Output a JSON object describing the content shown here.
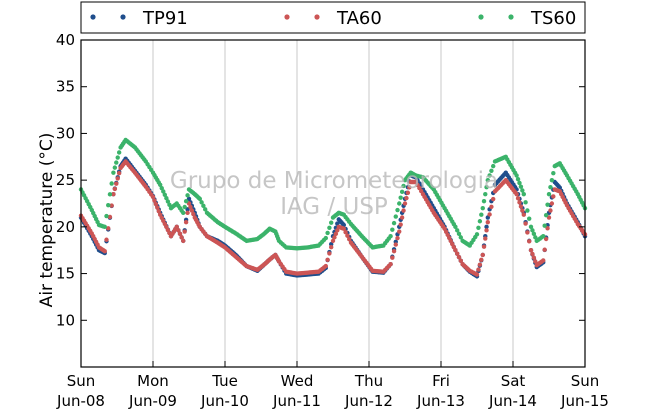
{
  "chart_data": {
    "type": "scatter",
    "ylabel": "Air temperature (°C)",
    "ylim": [
      5,
      40
    ],
    "yticks": [
      10,
      15,
      20,
      25,
      30,
      35,
      40
    ],
    "xlim": [
      0,
      7
    ],
    "xticks": [
      {
        "day": "Sun",
        "date": "Jun-08",
        "x": 0
      },
      {
        "day": "Mon",
        "date": "Jun-09",
        "x": 1
      },
      {
        "day": "Tue",
        "date": "Jun-10",
        "x": 2
      },
      {
        "day": "Wed",
        "date": "Jun-11",
        "x": 3
      },
      {
        "day": "Thu",
        "date": "Jun-12",
        "x": 4
      },
      {
        "day": "Fri",
        "date": "Jun-13",
        "x": 5
      },
      {
        "day": "Sat",
        "date": "Jun-14",
        "x": 6
      },
      {
        "day": "Sun",
        "date": "Jun-15",
        "x": 7
      }
    ],
    "grid": "vertical",
    "legend_position": "top",
    "watermark": [
      "Grupo de Micrometeorologia",
      "IAG / USP"
    ],
    "series": [
      {
        "name": "TP91",
        "color": "#1f4e8c",
        "x": [
          0,
          0.15,
          0.25,
          0.33,
          0.45,
          0.55,
          0.62,
          0.75,
          0.9,
          1.0,
          1.1,
          1.25,
          1.33,
          1.42,
          1.5,
          1.58,
          1.65,
          1.75,
          1.9,
          2.0,
          2.15,
          2.3,
          2.45,
          2.55,
          2.62,
          2.7,
          2.75,
          2.85,
          3.0,
          3.15,
          3.3,
          3.4,
          3.5,
          3.58,
          3.65,
          3.75,
          3.9,
          4.05,
          4.2,
          4.3,
          4.42,
          4.5,
          4.58,
          4.65,
          4.75,
          4.9,
          5.05,
          5.2,
          5.3,
          5.4,
          5.5,
          5.58,
          5.65,
          5.75,
          5.9,
          6.05,
          6.15,
          6.25,
          6.33,
          6.42,
          6.5,
          6.58,
          6.65,
          6.75,
          6.9,
          7.0
        ],
        "y": [
          21.0,
          19.0,
          17.5,
          17.2,
          23.5,
          26.5,
          27.3,
          26.0,
          24.5,
          23.3,
          21.5,
          19.0,
          20.0,
          18.5,
          23.0,
          21.5,
          20.0,
          19.0,
          18.5,
          18.0,
          17.0,
          15.8,
          15.3,
          16.0,
          16.5,
          17.0,
          16.3,
          15.0,
          14.8,
          14.9,
          15.0,
          15.6,
          19.0,
          20.8,
          20.2,
          18.5,
          16.8,
          15.2,
          15.1,
          16.0,
          20.0,
          23.0,
          25.5,
          25.3,
          24.0,
          22.0,
          20.0,
          17.5,
          16.0,
          15.2,
          14.7,
          17.0,
          21.0,
          24.5,
          25.8,
          24.0,
          21.5,
          17.5,
          15.7,
          16.2,
          21.5,
          24.8,
          24.2,
          22.5,
          20.5,
          19.0
        ]
      },
      {
        "name": "TA60",
        "color": "#cc5555",
        "x": [
          0,
          0.15,
          0.25,
          0.33,
          0.45,
          0.55,
          0.62,
          0.75,
          0.9,
          1.0,
          1.1,
          1.25,
          1.33,
          1.42,
          1.5,
          1.58,
          1.65,
          1.75,
          1.9,
          2.0,
          2.15,
          2.3,
          2.45,
          2.55,
          2.62,
          2.7,
          2.75,
          2.85,
          3.0,
          3.15,
          3.3,
          3.4,
          3.5,
          3.58,
          3.65,
          3.75,
          3.9,
          4.05,
          4.2,
          4.3,
          4.42,
          4.5,
          4.58,
          4.65,
          4.75,
          4.9,
          5.05,
          5.2,
          5.3,
          5.4,
          5.5,
          5.58,
          5.65,
          5.75,
          5.9,
          6.05,
          6.15,
          6.25,
          6.33,
          6.42,
          6.5,
          6.58,
          6.65,
          6.75,
          6.9,
          7.0
        ],
        "y": [
          21.2,
          19.3,
          17.8,
          17.4,
          23.5,
          26.3,
          27.0,
          25.8,
          24.3,
          23.2,
          21.3,
          19.0,
          20.0,
          18.5,
          22.5,
          21.0,
          20.0,
          19.0,
          18.3,
          17.8,
          16.8,
          15.8,
          15.4,
          16.0,
          16.5,
          17.0,
          16.3,
          15.2,
          15.0,
          15.1,
          15.2,
          15.8,
          18.5,
          20.0,
          19.8,
          18.3,
          16.8,
          15.3,
          15.2,
          16.0,
          19.5,
          22.5,
          24.8,
          24.8,
          23.5,
          21.5,
          19.8,
          17.5,
          16.0,
          15.3,
          14.9,
          17.0,
          20.5,
          23.8,
          25.0,
          23.5,
          21.3,
          17.5,
          15.9,
          16.4,
          21.0,
          24.0,
          23.8,
          22.3,
          20.3,
          19.2
        ]
      },
      {
        "name": "TS60",
        "color": "#3bb36a",
        "x": [
          0,
          0.15,
          0.25,
          0.33,
          0.45,
          0.55,
          0.62,
          0.75,
          0.9,
          1.0,
          1.1,
          1.25,
          1.33,
          1.42,
          1.5,
          1.58,
          1.65,
          1.75,
          1.9,
          2.0,
          2.15,
          2.3,
          2.45,
          2.55,
          2.62,
          2.7,
          2.75,
          2.85,
          3.0,
          3.15,
          3.3,
          3.4,
          3.5,
          3.58,
          3.65,
          3.75,
          3.9,
          4.05,
          4.2,
          4.3,
          4.42,
          4.5,
          4.58,
          4.65,
          4.75,
          4.9,
          5.05,
          5.2,
          5.3,
          5.4,
          5.5,
          5.58,
          5.65,
          5.75,
          5.9,
          6.05,
          6.15,
          6.25,
          6.33,
          6.42,
          6.5,
          6.58,
          6.65,
          6.75,
          6.9,
          7.0
        ],
        "y": [
          24.0,
          21.8,
          20.2,
          20.0,
          25.8,
          28.5,
          29.3,
          28.5,
          27.0,
          25.8,
          24.5,
          22.0,
          22.5,
          21.5,
          24.0,
          23.5,
          23.0,
          21.5,
          20.5,
          20.0,
          19.3,
          18.5,
          18.7,
          19.3,
          19.8,
          19.5,
          18.5,
          17.8,
          17.7,
          17.8,
          18.0,
          18.8,
          21.0,
          21.5,
          21.3,
          20.3,
          19.0,
          17.8,
          18.0,
          19.0,
          22.5,
          25.0,
          25.8,
          25.5,
          25.3,
          24.0,
          22.0,
          20.0,
          18.5,
          18.0,
          19.2,
          22.0,
          25.0,
          27.0,
          27.5,
          25.5,
          23.5,
          20.0,
          18.5,
          19.0,
          23.5,
          26.5,
          26.8,
          25.5,
          23.5,
          22.0
        ]
      }
    ]
  }
}
